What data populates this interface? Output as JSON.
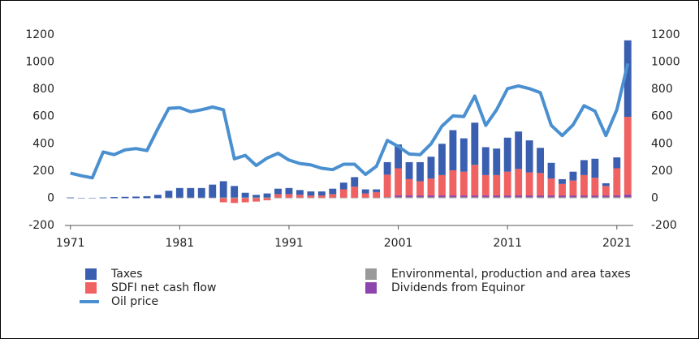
{
  "chart_data": {
    "type": "stacked-bar-line",
    "categories": [
      "1971",
      "1972",
      "1973",
      "1974",
      "1975",
      "1976",
      "1977",
      "1978",
      "1979",
      "1980",
      "1981",
      "1982",
      "1983",
      "1984",
      "1985",
      "1986",
      "1987",
      "1988",
      "1989",
      "1990",
      "1991",
      "1992",
      "1993",
      "1994",
      "1995",
      "1996",
      "1997",
      "1998",
      "1999",
      "2000",
      "2001",
      "2002",
      "2003",
      "2004",
      "2005",
      "2006",
      "2007",
      "2008",
      "2009",
      "2010",
      "2011",
      "2012",
      "2013",
      "2014",
      "2015",
      "2016",
      "2017",
      "2018",
      "2019",
      "2020",
      "2021",
      "2022"
    ],
    "series": [
      {
        "name": "Environmental, production and area taxes",
        "color": "#9a9a9a",
        "values": [
          0,
          0,
          0,
          0,
          0,
          0,
          0,
          0,
          0,
          5,
          5,
          5,
          5,
          5,
          5,
          5,
          5,
          5,
          5,
          5,
          5,
          5,
          5,
          5,
          5,
          5,
          5,
          5,
          5,
          8,
          8,
          8,
          8,
          8,
          8,
          8,
          8,
          8,
          8,
          8,
          8,
          8,
          8,
          8,
          8,
          8,
          8,
          8,
          8,
          8,
          8,
          8
        ]
      },
      {
        "name": "Dividends from Equinor",
        "color": "#8e44ad",
        "values": [
          0,
          0,
          0,
          0,
          0,
          0,
          0,
          0,
          0,
          0,
          0,
          0,
          0,
          0,
          0,
          0,
          0,
          0,
          0,
          0,
          0,
          0,
          0,
          0,
          0,
          0,
          0,
          0,
          0,
          0,
          12,
          12,
          12,
          12,
          12,
          12,
          12,
          12,
          12,
          12,
          12,
          12,
          12,
          12,
          12,
          12,
          12,
          12,
          12,
          12,
          12,
          20
        ]
      },
      {
        "name": "SDFI net cash flow",
        "color": "#f06262",
        "values": [
          0,
          0,
          0,
          0,
          0,
          0,
          0,
          0,
          0,
          0,
          0,
          0,
          0,
          0,
          -30,
          -35,
          -30,
          -25,
          -15,
          25,
          25,
          20,
          15,
          15,
          25,
          60,
          80,
          30,
          40,
          165,
          200,
          120,
          105,
          125,
          150,
          185,
          175,
          225,
          150,
          150,
          175,
          195,
          170,
          165,
          125,
          85,
          110,
          150,
          130,
          70,
          200,
          570
        ]
      },
      {
        "name": "Taxes",
        "color": "#3a5fb0",
        "values": [
          5,
          3,
          3,
          5,
          8,
          10,
          12,
          15,
          25,
          50,
          70,
          70,
          70,
          95,
          120,
          85,
          35,
          20,
          30,
          40,
          45,
          35,
          30,
          30,
          40,
          50,
          70,
          30,
          20,
          92,
          175,
          125,
          140,
          160,
          230,
          295,
          245,
          310,
          205,
          195,
          250,
          275,
          235,
          185,
          115,
          35,
          65,
          110,
          140,
          20,
          80,
          562
        ]
      },
      {
        "name": "Oil price",
        "color": "#4a90d0",
        "axis": "y2",
        "type": "line",
        "values": [
          185,
          165,
          150,
          340,
          320,
          355,
          365,
          350,
          510,
          660,
          665,
          635,
          650,
          670,
          650,
          290,
          315,
          240,
          295,
          330,
          280,
          255,
          245,
          220,
          210,
          250,
          250,
          175,
          235,
          425,
          380,
          325,
          320,
          400,
          530,
          605,
          600,
          750,
          535,
          650,
          805,
          825,
          805,
          775,
          535,
          460,
          540,
          680,
          640,
          460,
          650,
          990
        ]
      }
    ],
    "ylim": [
      -200,
      1200
    ],
    "yticks": [
      -200,
      0,
      200,
      400,
      600,
      800,
      1000,
      1200
    ],
    "y2lim": [
      -200,
      1200
    ],
    "y2ticks": [
      -200,
      0,
      200,
      400,
      600,
      800,
      1000,
      1200
    ]
  }
}
